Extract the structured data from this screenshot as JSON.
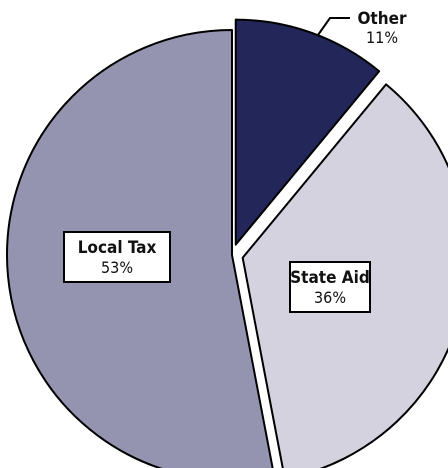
{
  "chart_data": {
    "type": "pie",
    "title": "",
    "slices": [
      {
        "label": "Other",
        "value": 11,
        "value_label": "11%",
        "color": "#232659",
        "exploded": true,
        "label_style": "callout"
      },
      {
        "label": "State Aid",
        "value": 36,
        "value_label": "36%",
        "color": "#d3d2de",
        "exploded": true,
        "label_style": "boxed"
      },
      {
        "label": "Local Tax",
        "value": 53,
        "value_label": "53%",
        "color": "#9594b0",
        "exploded": false,
        "label_style": "boxed"
      }
    ],
    "start_angle_deg": 0,
    "direction": "clockwise",
    "legend": "none"
  }
}
